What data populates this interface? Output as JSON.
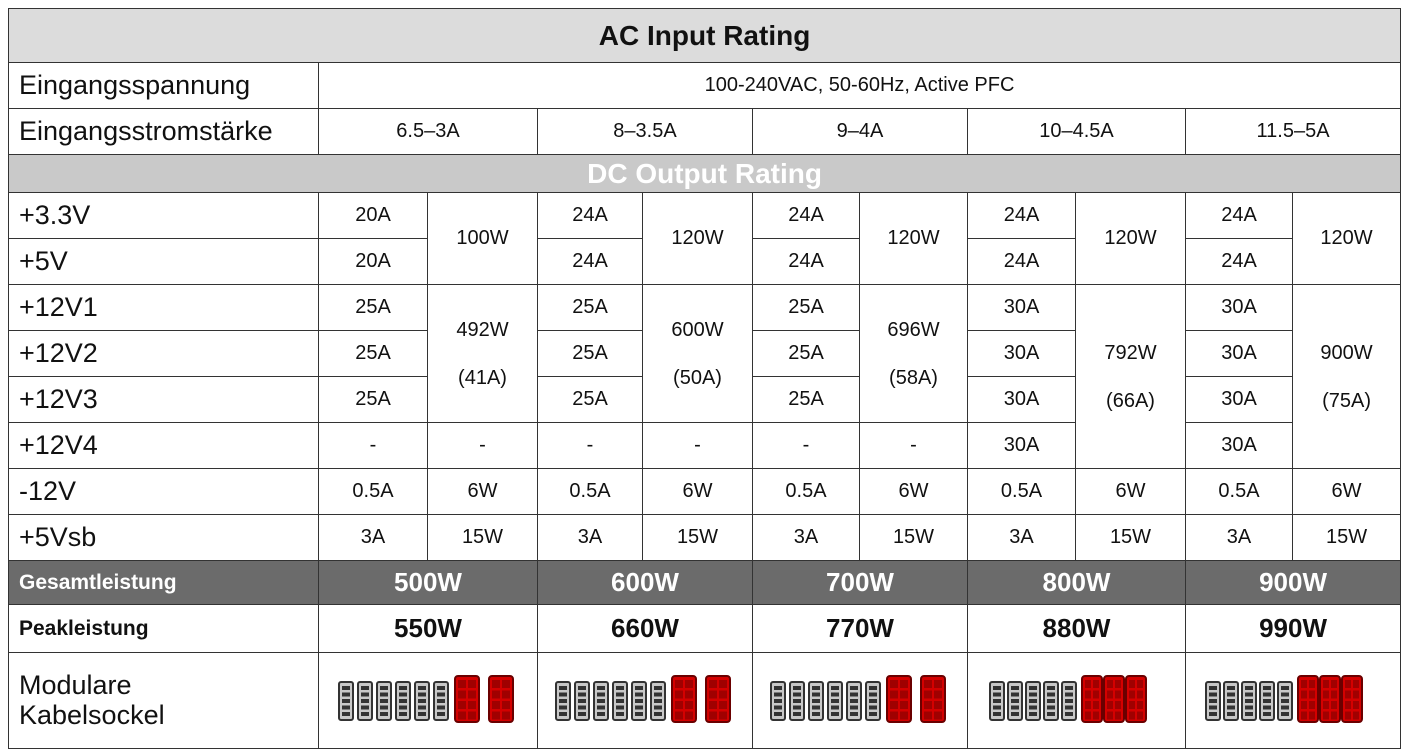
{
  "title": "AC Input Rating",
  "input_voltage": {
    "label": "Eingangsspannung",
    "value": "100-240VAC, 50-60Hz, Active PFC"
  },
  "input_current": {
    "label": "Eingangsstromstärke",
    "values": [
      "6.5–3A",
      "8–3.5A",
      "9–4A",
      "10–4.5A",
      "11.5–5A"
    ]
  },
  "dc_title": "DC Output Rating",
  "rails_low": [
    {
      "label": "+3.3V",
      "amps": [
        "20A",
        "24A",
        "24A",
        "24A",
        "24A"
      ]
    },
    {
      "label": "+5V",
      "amps": [
        "20A",
        "24A",
        "24A",
        "24A",
        "24A"
      ]
    }
  ],
  "low_watts": [
    "100W",
    "120W",
    "120W",
    "120W",
    "120W"
  ],
  "rails_12v": [
    {
      "label": "+12V1",
      "amps": [
        "25A",
        "25A",
        "25A",
        "30A",
        "30A"
      ]
    },
    {
      "label": "+12V2",
      "amps": [
        "25A",
        "25A",
        "25A",
        "30A",
        "30A"
      ]
    },
    {
      "label": "+12V3",
      "amps": [
        "25A",
        "25A",
        "25A",
        "30A",
        "30A"
      ]
    },
    {
      "label": "+12V4",
      "amps": [
        "-",
        "-",
        "-",
        "30A",
        "30A"
      ]
    }
  ],
  "watts_12v": [
    {
      "watts": "492W",
      "amps": "(41A)"
    },
    {
      "watts": "600W",
      "amps": "(50A)"
    },
    {
      "watts": "696W",
      "amps": "(58A)"
    },
    {
      "watts": "792W",
      "amps": "(66A)"
    },
    {
      "watts": "900W",
      "amps": "(75A)"
    }
  ],
  "watts_12v4": [
    "-",
    "-",
    "-"
  ],
  "minus12v": {
    "label": "-12V",
    "amps": [
      "0.5A",
      "0.5A",
      "0.5A",
      "0.5A",
      "0.5A"
    ],
    "watts": [
      "6W",
      "6W",
      "6W",
      "6W",
      "6W"
    ]
  },
  "standby": {
    "label": "+5Vsb",
    "amps": [
      "3A",
      "3A",
      "3A",
      "3A",
      "3A"
    ],
    "watts": [
      "15W",
      "15W",
      "15W",
      "15W",
      "15W"
    ]
  },
  "total": {
    "label": "Gesamtleistung",
    "values": [
      "500W",
      "600W",
      "700W",
      "800W",
      "900W"
    ]
  },
  "peak": {
    "label": "Peakleistung",
    "values": [
      "550W",
      "660W",
      "770W",
      "880W",
      "990W"
    ]
  },
  "modular": {
    "label": "Modulare Kabelsockel"
  }
}
